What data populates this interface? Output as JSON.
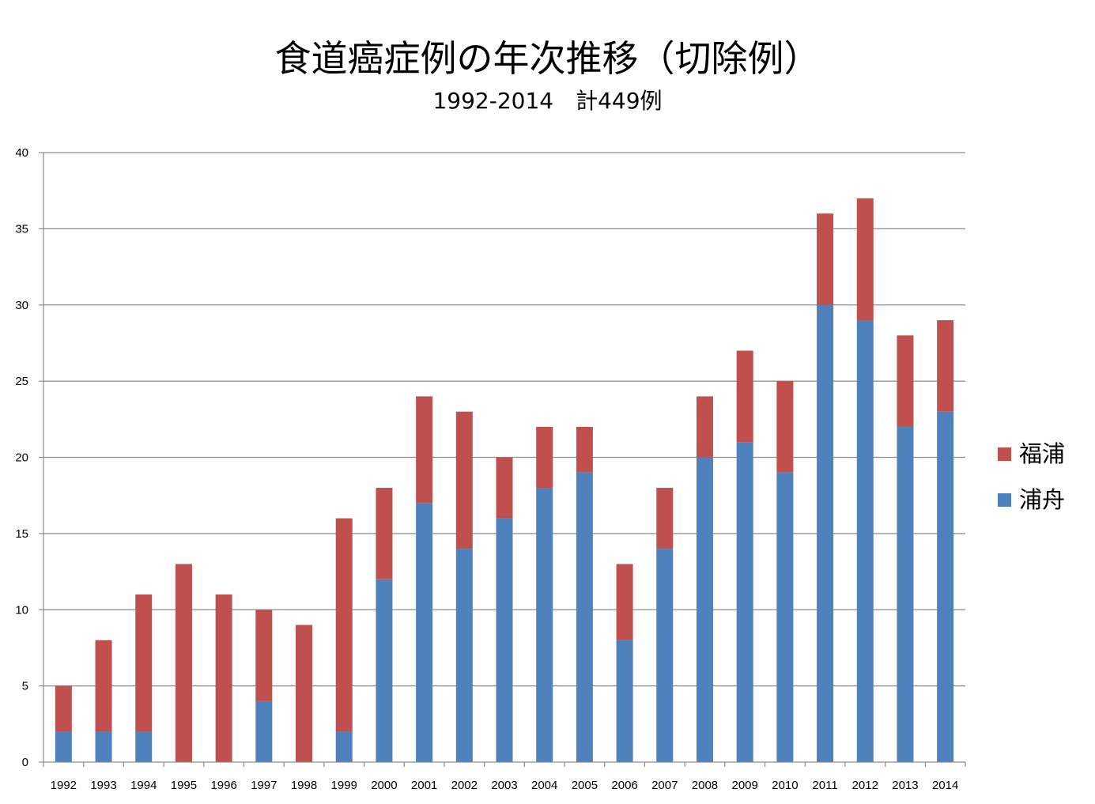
{
  "chart_data": {
    "type": "bar",
    "stacked": true,
    "title": "食道癌症例の年次推移（切除例）",
    "subtitle": "1992-2014　計449例",
    "categories": [
      "1992",
      "1993",
      "1994",
      "1995",
      "1996",
      "1997",
      "1998",
      "1999",
      "2000",
      "2001",
      "2002",
      "2003",
      "2004",
      "2005",
      "2006",
      "2007",
      "2008",
      "2009",
      "2010",
      "2011",
      "2012",
      "2013",
      "2014"
    ],
    "series": [
      {
        "name": "浦舟",
        "color": "#4f81bd",
        "values": [
          2,
          2,
          2,
          0,
          0,
          4,
          0,
          2,
          12,
          17,
          14,
          16,
          18,
          19,
          8,
          14,
          20,
          21,
          19,
          30,
          29,
          22,
          23
        ]
      },
      {
        "name": "福浦",
        "color": "#c0504d",
        "values": [
          3,
          6,
          9,
          13,
          11,
          6,
          9,
          14,
          6,
          7,
          9,
          4,
          4,
          3,
          5,
          4,
          4,
          6,
          6,
          6,
          8,
          6,
          6
        ]
      }
    ],
    "ylim": [
      0,
      40
    ],
    "yticks": [
      0,
      5,
      10,
      15,
      20,
      25,
      30,
      35,
      40
    ],
    "grid": true,
    "legend_position": "right",
    "legend_order": [
      "福浦",
      "浦舟"
    ]
  }
}
